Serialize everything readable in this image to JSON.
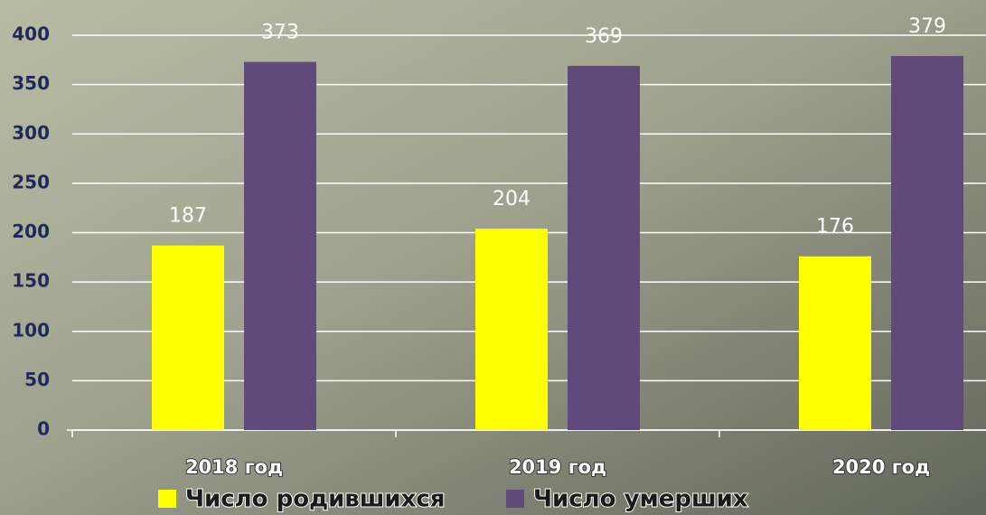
{
  "chart_data": {
    "type": "bar",
    "categories": [
      "2018 год",
      "2019 год",
      "2020 год"
    ],
    "series": [
      {
        "name": "Число родившихся",
        "color": "#ffff00",
        "values": [
          187,
          204,
          176
        ]
      },
      {
        "name": "Число умерших",
        "color": "#604a7b",
        "values": [
          373,
          369,
          379
        ]
      }
    ],
    "ylim": [
      0,
      400
    ],
    "yticks": [
      0,
      50,
      100,
      150,
      200,
      250,
      300,
      350,
      400
    ],
    "grid": true,
    "legend": "bottom"
  }
}
